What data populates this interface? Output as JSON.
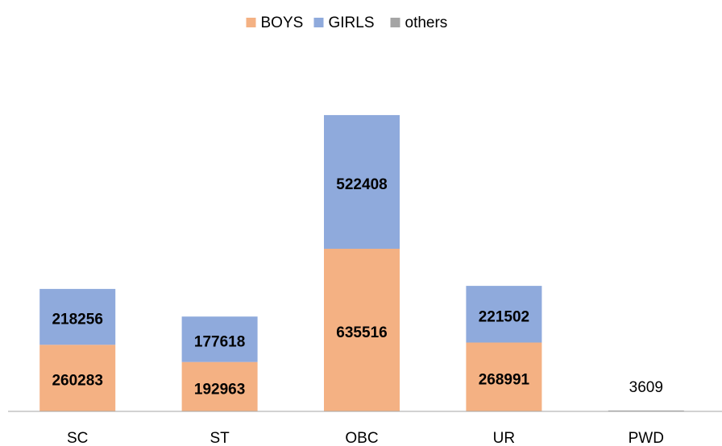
{
  "chart_data": {
    "type": "stacked_bar",
    "categories": [
      "SC",
      "ST",
      "OBC",
      "UR",
      "PWD"
    ],
    "series": [
      {
        "name": "BOYS",
        "color": "#f4b183",
        "values": [
          260283,
          192963,
          635516,
          268991,
          null
        ]
      },
      {
        "name": "GIRLS",
        "color": "#8faadc",
        "values": [
          218256,
          177618,
          522408,
          221502,
          null
        ]
      },
      {
        "name": "others",
        "color": "#a5a5a5",
        "values": [
          null,
          null,
          null,
          null,
          3609
        ]
      }
    ],
    "ylim": [
      0,
      1400000
    ],
    "legend": "top"
  }
}
